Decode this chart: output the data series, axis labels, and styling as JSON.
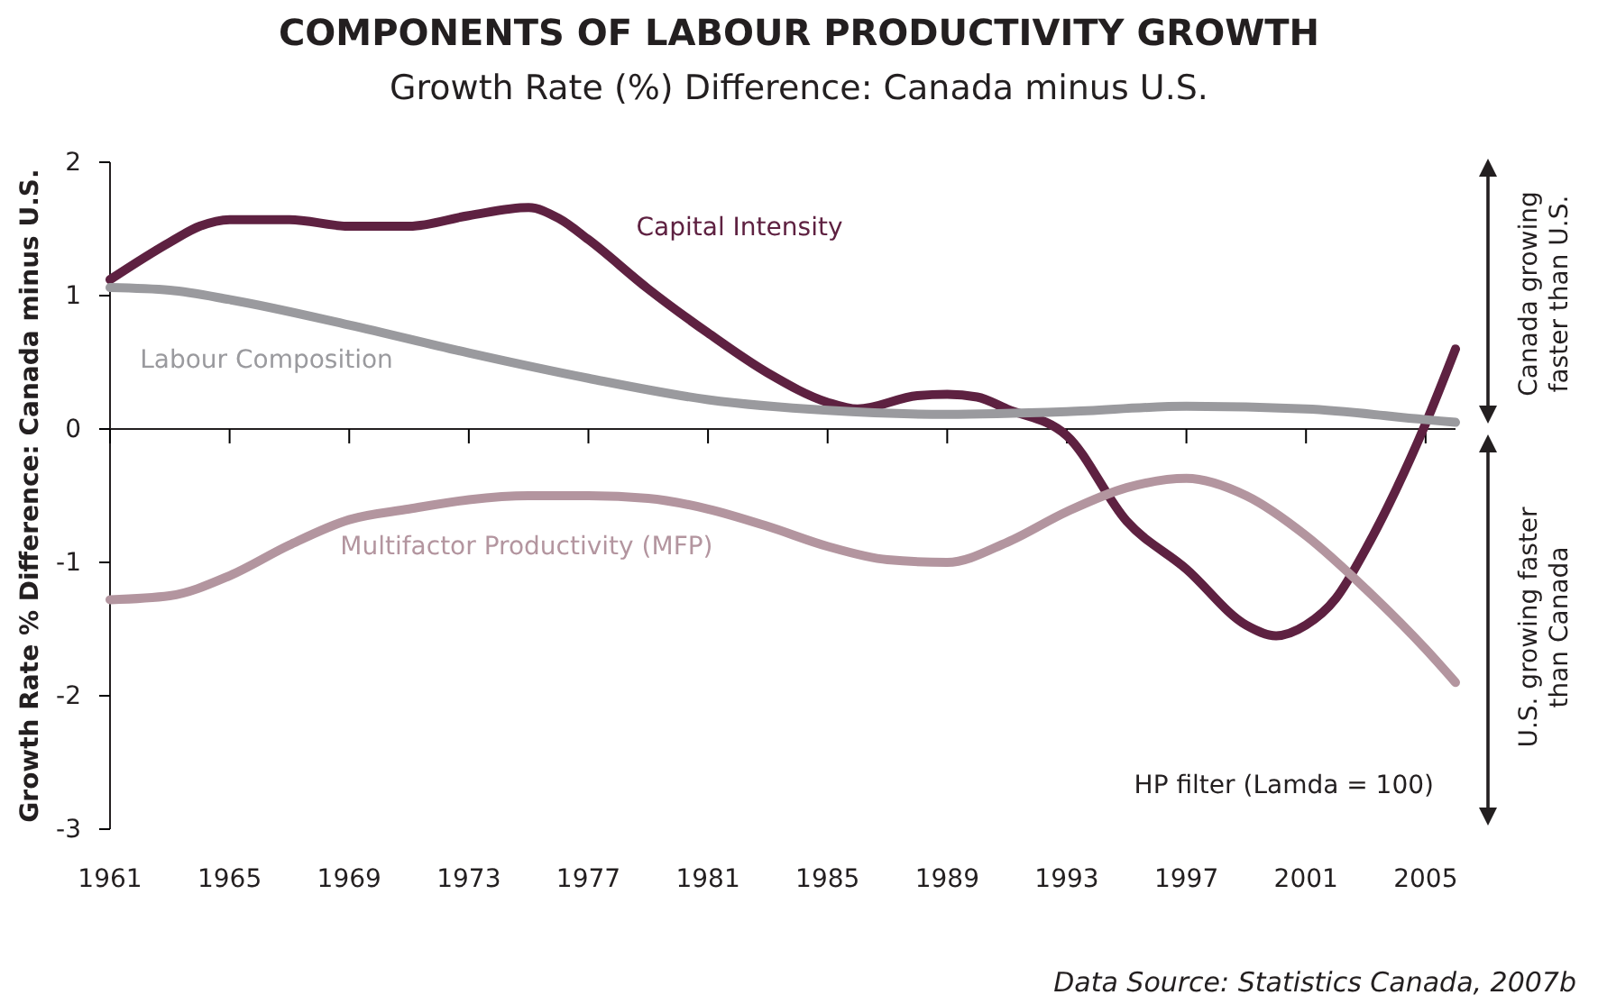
{
  "chart_data": {
    "type": "line",
    "title": "COMPONENTS OF LABOUR PRODUCTIVITY GROWTH",
    "subtitle": "Growth Rate (%) Difference: Canada minus U.S.",
    "ylabel": "Growth Rate % Difference: Canada minus U.S.",
    "xlim": [
      1961,
      2006
    ],
    "xticks": [
      1961,
      1965,
      1969,
      1973,
      1977,
      1981,
      1985,
      1989,
      1993,
      1997,
      2001,
      2005
    ],
    "ylim": [
      -3,
      2
    ],
    "yticks": [
      -3,
      -2,
      -1,
      0,
      1,
      2
    ],
    "series": [
      {
        "name": "Capital Intensity",
        "color": "#5e2141",
        "x": [
          1961,
          1963,
          1964,
          1965,
          1967,
          1969,
          1971,
          1973,
          1975,
          1976,
          1977,
          1979,
          1981,
          1983,
          1985,
          1986,
          1988,
          1989,
          1990,
          1991,
          1993,
          1995,
          1997,
          1999,
          2000,
          2001,
          2002,
          2003,
          2004,
          2005,
          2006
        ],
        "values": [
          1.12,
          1.4,
          1.52,
          1.57,
          1.57,
          1.52,
          1.52,
          1.6,
          1.66,
          1.58,
          1.42,
          1.05,
          0.72,
          0.42,
          0.2,
          0.15,
          0.25,
          0.26,
          0.24,
          0.15,
          -0.05,
          -0.69,
          -1.05,
          -1.47,
          -1.55,
          -1.47,
          -1.27,
          -0.9,
          -0.46,
          0.04,
          0.6
        ]
      },
      {
        "name": "Labour Composition",
        "color": "#9a9a9e",
        "x": [
          1961,
          1963,
          1965,
          1969,
          1973,
          1977,
          1981,
          1985,
          1989,
          1993,
          1997,
          2001,
          2005,
          2006
        ],
        "values": [
          1.06,
          1.04,
          0.97,
          0.78,
          0.57,
          0.38,
          0.22,
          0.14,
          0.11,
          0.13,
          0.17,
          0.15,
          0.07,
          0.05
        ]
      },
      {
        "name": "Multifactor Productivity (MFP)",
        "color": "#b3959f",
        "x": [
          1961,
          1963,
          1965,
          1967,
          1969,
          1971,
          1973,
          1975,
          1977,
          1979,
          1981,
          1983,
          1985,
          1987,
          1989,
          1991,
          1993,
          1995,
          1997,
          1999,
          2001,
          2003,
          2005,
          2006
        ],
        "values": [
          -1.28,
          -1.25,
          -1.1,
          -0.87,
          -0.68,
          -0.6,
          -0.53,
          -0.5,
          -0.5,
          -0.52,
          -0.6,
          -0.73,
          -0.88,
          -0.98,
          -1.0,
          -0.85,
          -0.62,
          -0.44,
          -0.37,
          -0.5,
          -0.8,
          -1.2,
          -1.65,
          -1.9
        ]
      }
    ],
    "annotations": [
      "HP filter (Lamda = 100)",
      "Canada growing\nfaster than U.S.",
      "U.S. growing faster\nthan Canada",
      "Data Source: Statistics Canada, 2007b"
    ]
  }
}
